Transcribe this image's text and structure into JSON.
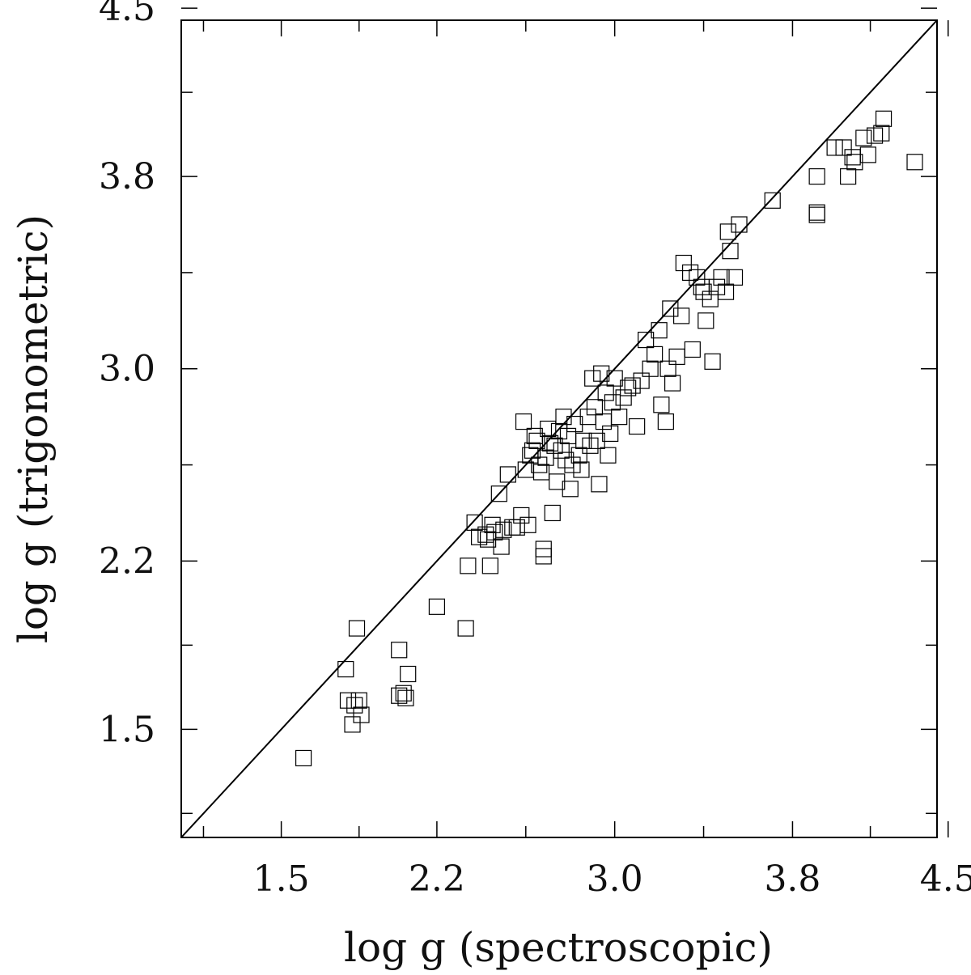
{
  "chart_data": {
    "type": "scatter",
    "title": "",
    "xlabel": "log g (spectroscopic)",
    "ylabel": "log g (trigonometric)",
    "xlim": [
      1.05,
      4.45
    ],
    "ylim": [
      1.05,
      4.45
    ],
    "xticks": [
      "1.5",
      "2.2",
      "3.0",
      "3.8",
      "4.5"
    ],
    "xtick_values": [
      1.5,
      2.2,
      3.0,
      3.8,
      4.5
    ],
    "yticks": [
      "1.5",
      "2.2",
      "3.0",
      "3.8",
      "4.5"
    ],
    "ytick_values": [
      1.5,
      2.2,
      3.0,
      3.8,
      4.5
    ],
    "marker": "open-square",
    "reference_line": "one-to-one",
    "grid": false,
    "series": [
      {
        "points": [
          [
            1.6,
            1.38
          ],
          [
            1.79,
            1.75
          ],
          [
            1.8,
            1.62
          ],
          [
            1.82,
            1.52
          ],
          [
            1.83,
            1.6
          ],
          [
            1.84,
            1.92
          ],
          [
            1.85,
            1.62
          ],
          [
            1.86,
            1.56
          ],
          [
            2.03,
            1.83
          ],
          [
            2.03,
            1.64
          ],
          [
            2.05,
            1.65
          ],
          [
            2.06,
            1.63
          ],
          [
            2.07,
            1.73
          ],
          [
            2.2,
            2.01
          ],
          [
            2.33,
            1.92
          ],
          [
            2.34,
            2.18
          ],
          [
            2.37,
            2.36
          ],
          [
            2.39,
            2.3
          ],
          [
            2.42,
            2.31
          ],
          [
            2.43,
            2.29
          ],
          [
            2.44,
            2.18
          ],
          [
            2.45,
            2.35
          ],
          [
            2.46,
            2.32
          ],
          [
            2.48,
            2.48
          ],
          [
            2.49,
            2.26
          ],
          [
            2.5,
            2.33
          ],
          [
            2.52,
            2.56
          ],
          [
            2.54,
            2.34
          ],
          [
            2.56,
            2.34
          ],
          [
            2.58,
            2.39
          ],
          [
            2.59,
            2.78
          ],
          [
            2.6,
            2.58
          ],
          [
            2.61,
            2.35
          ],
          [
            2.62,
            2.64
          ],
          [
            2.63,
            2.66
          ],
          [
            2.64,
            2.72
          ],
          [
            2.65,
            2.7
          ],
          [
            2.66,
            2.6
          ],
          [
            2.67,
            2.57
          ],
          [
            2.68,
            2.22
          ],
          [
            2.68,
            2.25
          ],
          [
            2.69,
            2.63
          ],
          [
            2.7,
            2.75
          ],
          [
            2.71,
            2.69
          ],
          [
            2.72,
            2.4
          ],
          [
            2.73,
            2.68
          ],
          [
            2.74,
            2.53
          ],
          [
            2.75,
            2.74
          ],
          [
            2.76,
            2.66
          ],
          [
            2.77,
            2.8
          ],
          [
            2.78,
            2.62
          ],
          [
            2.79,
            2.72
          ],
          [
            2.8,
            2.5
          ],
          [
            2.81,
            2.6
          ],
          [
            2.82,
            2.77
          ],
          [
            2.84,
            2.64
          ],
          [
            2.85,
            2.58
          ],
          [
            2.86,
            2.7
          ],
          [
            2.88,
            2.8
          ],
          [
            2.89,
            2.68
          ],
          [
            2.9,
            2.96
          ],
          [
            2.91,
            2.84
          ],
          [
            2.92,
            2.7
          ],
          [
            2.93,
            2.52
          ],
          [
            2.94,
            2.98
          ],
          [
            2.95,
            2.78
          ],
          [
            2.96,
            2.9
          ],
          [
            2.97,
            2.64
          ],
          [
            2.98,
            2.73
          ],
          [
            2.99,
            2.86
          ],
          [
            3.0,
            2.96
          ],
          [
            3.02,
            2.8
          ],
          [
            3.04,
            2.88
          ],
          [
            3.06,
            2.92
          ],
          [
            3.08,
            2.93
          ],
          [
            3.1,
            2.76
          ],
          [
            3.12,
            2.95
          ],
          [
            3.14,
            3.12
          ],
          [
            3.16,
            3.0
          ],
          [
            3.18,
            3.06
          ],
          [
            3.2,
            3.16
          ],
          [
            3.21,
            2.85
          ],
          [
            3.23,
            2.78
          ],
          [
            3.24,
            3.0
          ],
          [
            3.25,
            3.25
          ],
          [
            3.26,
            2.94
          ],
          [
            3.28,
            3.05
          ],
          [
            3.3,
            3.22
          ],
          [
            3.31,
            3.44
          ],
          [
            3.34,
            3.4
          ],
          [
            3.35,
            3.08
          ],
          [
            3.37,
            3.38
          ],
          [
            3.39,
            3.34
          ],
          [
            3.4,
            3.32
          ],
          [
            3.41,
            3.2
          ],
          [
            3.43,
            3.29
          ],
          [
            3.44,
            3.03
          ],
          [
            3.46,
            3.34
          ],
          [
            3.48,
            3.38
          ],
          [
            3.5,
            3.32
          ],
          [
            3.51,
            3.57
          ],
          [
            3.52,
            3.49
          ],
          [
            3.54,
            3.38
          ],
          [
            3.56,
            3.6
          ],
          [
            3.71,
            3.7
          ],
          [
            3.91,
            3.8
          ],
          [
            3.91,
            3.64
          ],
          [
            3.91,
            3.65
          ],
          [
            3.99,
            3.92
          ],
          [
            4.03,
            3.92
          ],
          [
            4.05,
            3.8
          ],
          [
            4.07,
            3.88
          ],
          [
            4.08,
            3.86
          ],
          [
            4.12,
            3.96
          ],
          [
            4.14,
            3.89
          ],
          [
            4.17,
            3.97
          ],
          [
            4.2,
            3.98
          ],
          [
            4.21,
            4.04
          ],
          [
            4.35,
            3.86
          ]
        ]
      }
    ]
  }
}
